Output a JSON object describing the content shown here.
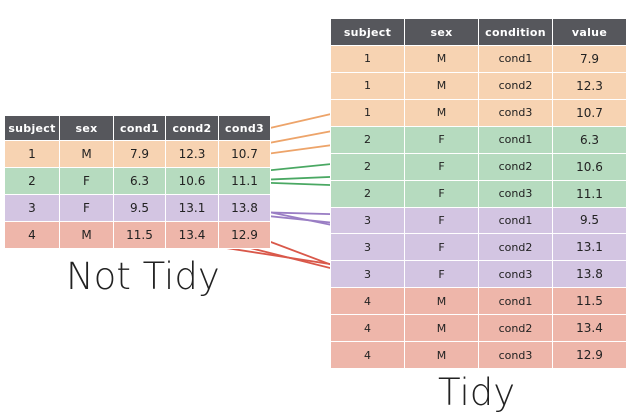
{
  "wide_table": {
    "columns": [
      "subject",
      "sex",
      "cond1",
      "cond2",
      "cond3"
    ],
    "rows": [
      [
        "1",
        "M",
        "7.9",
        "12.3",
        "10.7"
      ],
      [
        "2",
        "F",
        "6.3",
        "10.6",
        "11.1"
      ],
      [
        "3",
        "F",
        "9.5",
        "13.1",
        "13.8"
      ],
      [
        "4",
        "M",
        "11.5",
        "13.4",
        "12.9"
      ]
    ],
    "caption": "Not Tidy"
  },
  "long_table": {
    "columns": [
      "subject",
      "sex",
      "condition",
      "value"
    ],
    "rows": [
      [
        "1",
        "M",
        "cond1",
        "7.9"
      ],
      [
        "1",
        "M",
        "cond2",
        "12.3"
      ],
      [
        "1",
        "M",
        "cond3",
        "10.7"
      ],
      [
        "2",
        "F",
        "cond1",
        "6.3"
      ],
      [
        "2",
        "F",
        "cond2",
        "10.6"
      ],
      [
        "2",
        "F",
        "cond3",
        "11.1"
      ],
      [
        "3",
        "F",
        "cond1",
        "9.5"
      ],
      [
        "3",
        "F",
        "cond2",
        "13.1"
      ],
      [
        "3",
        "F",
        "cond3",
        "13.8"
      ],
      [
        "4",
        "M",
        "cond1",
        "11.5"
      ],
      [
        "4",
        "M",
        "cond2",
        "13.4"
      ],
      [
        "4",
        "M",
        "cond3",
        "12.9"
      ]
    ],
    "caption": "Tidy"
  },
  "colors": {
    "header": "#56575c",
    "subject_1": "#f7d3b2",
    "subject_2": "#b6dbbf",
    "subject_3": "#d3c5e2",
    "subject_4": "#eeb6aa",
    "arrow_1": "#eda46a",
    "arrow_2": "#4aa863",
    "arrow_3": "#9a7ec4",
    "arrow_4": "#d9584a"
  }
}
